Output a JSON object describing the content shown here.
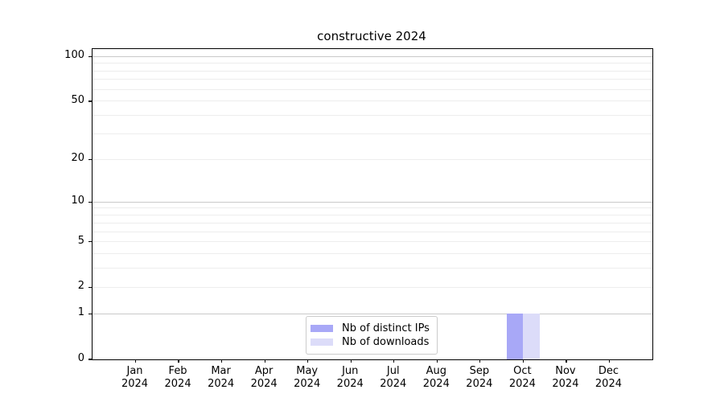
{
  "chart_data": {
    "type": "bar",
    "title": "constructive 2024",
    "categories": [
      "Jan 2024",
      "Feb 2024",
      "Mar 2024",
      "Apr 2024",
      "May 2024",
      "Jun 2024",
      "Jul 2024",
      "Aug 2024",
      "Sep 2024",
      "Oct 2024",
      "Nov 2024",
      "Dec 2024"
    ],
    "series": [
      {
        "name": "Nb of distinct IPs",
        "color": "#a8a8f7",
        "values": [
          0,
          0,
          0,
          0,
          0,
          0,
          0,
          0,
          0,
          1,
          0,
          0
        ]
      },
      {
        "name": "Nb of downloads",
        "color": "#dcdcf9",
        "values": [
          0,
          0,
          0,
          0,
          0,
          0,
          0,
          0,
          0,
          1,
          0,
          0
        ]
      }
    ],
    "yscale": "log1p",
    "ylim": [
      0,
      112
    ],
    "y_tick_values": [
      0,
      1,
      2,
      5,
      10,
      20,
      50,
      100
    ],
    "y_major_gridlines": [
      1,
      10,
      100
    ],
    "y_minor_gridlines": [
      2,
      3,
      4,
      5,
      6,
      7,
      8,
      9,
      20,
      30,
      40,
      50,
      60,
      70,
      80,
      90
    ],
    "grid": true,
    "legend_position": "lower center inside plot",
    "legend": {
      "items": [
        {
          "label": "Nb of distinct IPs",
          "color": "#a8a8f7"
        },
        {
          "label": "Nb of downloads",
          "color": "#dcdcf9"
        }
      ]
    },
    "colors": {
      "background": "#ffffff",
      "spine": "#000000",
      "text": "#000000",
      "major_grid": "#c9c9c9",
      "minor_grid": "#ededed"
    }
  }
}
